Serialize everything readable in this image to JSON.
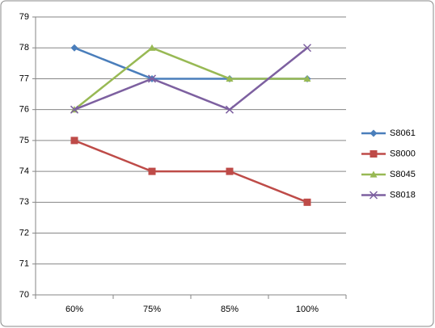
{
  "chart_data": {
    "type": "line",
    "categories": [
      "60%",
      "75%",
      "85%",
      "100%"
    ],
    "series": [
      {
        "name": "S8061",
        "color": "#4a7ebb",
        "marker": "diamond",
        "values": [
          78,
          77,
          77,
          77
        ]
      },
      {
        "name": "S8000",
        "color": "#be4b48",
        "marker": "square",
        "values": [
          75,
          74,
          74,
          73
        ]
      },
      {
        "name": "S8045",
        "color": "#98b954",
        "marker": "triangle",
        "values": [
          76,
          78,
          77,
          77
        ]
      },
      {
        "name": "S8018",
        "color": "#7d60a0",
        "marker": "x",
        "values": [
          76,
          77,
          76,
          78
        ]
      }
    ],
    "ylim": [
      70,
      79
    ],
    "yticks": [
      70,
      71,
      72,
      73,
      74,
      75,
      76,
      77,
      78,
      79
    ],
    "grid": true,
    "legend": "right"
  }
}
